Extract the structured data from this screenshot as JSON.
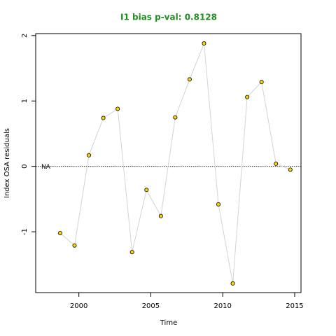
{
  "chart_data": {
    "type": "line",
    "title": "I1 bias p-val: 0.8128",
    "x_label": "Time",
    "y_label": "Index OSA residuals",
    "x": [
      1998.7,
      1999.7,
      2000.7,
      2001.7,
      2002.7,
      2003.7,
      2004.7,
      2005.7,
      2006.7,
      2007.7,
      2008.7,
      2009.7,
      2010.7,
      2011.7,
      2012.7,
      2013.7,
      2014.7
    ],
    "series": [
      {
        "color": "#FFD700",
        "values": [
          -1.02,
          -1.21,
          0.17,
          0.74,
          0.88,
          -1.31,
          -0.36,
          -0.76,
          0.75,
          1.33,
          1.88,
          -0.58,
          -1.79,
          1.06,
          1.29,
          0.04,
          -0.05
        ]
      }
    ],
    "xlim": [
      1997,
      2015.44
    ],
    "ylim": [
      -1.93,
      2.03
    ],
    "xticks": [
      2000,
      2005,
      2010,
      2015
    ],
    "yticks": [
      -1,
      0,
      1,
      2
    ],
    "reference_line": 0,
    "annotation": "NA"
  }
}
